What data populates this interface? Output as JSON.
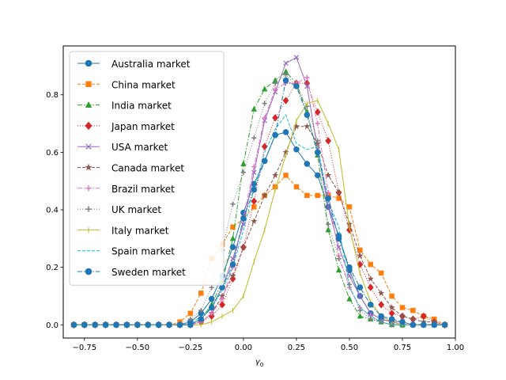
{
  "chart_data": {
    "type": "line",
    "xlabel": "γ0",
    "ylabel": "",
    "title": "",
    "xlim": [
      -0.85,
      1.0
    ],
    "ylim": [
      -0.046,
      0.97
    ],
    "x_ticks": [
      -0.75,
      -0.5,
      -0.25,
      0.0,
      0.25,
      0.5,
      0.75,
      1.0
    ],
    "x_tick_labels": [
      "−0.75",
      "−0.50",
      "−0.25",
      "0.00",
      "0.25",
      "0.50",
      "0.75",
      "1.00"
    ],
    "y_ticks": [
      0.0,
      0.2,
      0.4,
      0.6,
      0.8
    ],
    "y_tick_labels": [
      "0.0",
      "0.2",
      "0.4",
      "0.6",
      "0.8"
    ],
    "grid": false,
    "legend_position": "top-left",
    "x": [
      -0.8,
      -0.75,
      -0.7,
      -0.65,
      -0.6,
      -0.55,
      -0.5,
      -0.45,
      -0.4,
      -0.35,
      -0.3,
      -0.25,
      -0.2,
      -0.15,
      -0.1,
      -0.05,
      0.0,
      0.05,
      0.1,
      0.15,
      0.2,
      0.25,
      0.3,
      0.35,
      0.4,
      0.45,
      0.5,
      0.55,
      0.6,
      0.65,
      0.7,
      0.75,
      0.8,
      0.85,
      0.9,
      0.95
    ],
    "series": [
      {
        "name": "Australia market",
        "color": "#1f77b4",
        "dash": "",
        "marker": "circle",
        "values": [
          0,
          0,
          0,
          0,
          0,
          0,
          0,
          0,
          0,
          0,
          0,
          0.01,
          0.04,
          0.09,
          0.17,
          0.27,
          0.39,
          0.49,
          0.57,
          0.66,
          0.67,
          0.61,
          0.56,
          0.52,
          0.41,
          0.31,
          0.19,
          0.1,
          0.04,
          0.02,
          0.01,
          0,
          0,
          0,
          0,
          0
        ]
      },
      {
        "name": "China market",
        "color": "#ff7f0e",
        "dash": "4,2",
        "marker": "square",
        "values": [
          0,
          0,
          0,
          0,
          0,
          0,
          0,
          0,
          0,
          0,
          0.01,
          0.04,
          0.11,
          0.23,
          0.28,
          0.34,
          0.37,
          0.41,
          0.45,
          0.48,
          0.52,
          0.48,
          0.45,
          0.45,
          0.45,
          0.44,
          0.41,
          0.26,
          0.21,
          0.18,
          0.1,
          0.06,
          0.05,
          0.03,
          0.02,
          0
        ]
      },
      {
        "name": "India market",
        "color": "#2ca02c",
        "dash": "6,2,1.5,2",
        "marker": "triangle",
        "values": [
          0,
          0,
          0,
          0,
          0,
          0,
          0,
          0,
          0,
          0,
          0,
          0,
          0.02,
          0.07,
          0.15,
          0.3,
          0.56,
          0.75,
          0.82,
          0.85,
          0.88,
          0.84,
          0.74,
          0.59,
          0.33,
          0.19,
          0.09,
          0.03,
          0.02,
          0.01,
          0,
          0,
          0,
          0,
          0,
          0
        ]
      },
      {
        "name": "Japan market",
        "color": "#d62728",
        "dash": "1,2",
        "marker": "diamond",
        "values": [
          0,
          0,
          0,
          0,
          0,
          0,
          0,
          0,
          0,
          0,
          0,
          0,
          0.01,
          0.03,
          0.07,
          0.16,
          0.27,
          0.43,
          0.62,
          0.72,
          0.78,
          0.84,
          0.84,
          0.74,
          0.64,
          0.46,
          0.33,
          0.21,
          0.13,
          0.07,
          0.04,
          0.03,
          0.02,
          0.03,
          0.01,
          0
        ]
      },
      {
        "name": "USA market",
        "color": "#9467bd",
        "dash": "",
        "marker": "x",
        "values": [
          0,
          0,
          0,
          0,
          0,
          0,
          0,
          0,
          0,
          0,
          0,
          0,
          0.02,
          0.06,
          0.13,
          0.23,
          0.35,
          0.53,
          0.71,
          0.81,
          0.91,
          0.93,
          0.83,
          0.61,
          0.41,
          0.27,
          0.17,
          0.1,
          0.04,
          0.02,
          0.01,
          0.01,
          0,
          0,
          0,
          0
        ]
      },
      {
        "name": "Canada market",
        "color": "#8c564b",
        "dash": "4,2",
        "marker": "star",
        "values": [
          0,
          0,
          0,
          0,
          0,
          0,
          0,
          0,
          0,
          0,
          0,
          0,
          0.01,
          0.04,
          0.1,
          0.17,
          0.27,
          0.36,
          0.45,
          0.52,
          0.6,
          0.69,
          0.69,
          0.63,
          0.52,
          0.46,
          0.35,
          0.24,
          0.16,
          0.11,
          0.06,
          0.03,
          0.02,
          0.01,
          0.01,
          0
        ]
      },
      {
        "name": "Brazil market",
        "color": "#e377c2",
        "dash": "6,2,1.5,2",
        "marker": "plus",
        "values": [
          0,
          0,
          0,
          0,
          0,
          0,
          0,
          0,
          0,
          0,
          0,
          0,
          0.01,
          0.04,
          0.09,
          0.2,
          0.37,
          0.55,
          0.72,
          0.82,
          0.84,
          0.84,
          0.86,
          0.7,
          0.46,
          0.24,
          0.13,
          0.06,
          0.03,
          0.01,
          0,
          0,
          0,
          0,
          0,
          0
        ]
      },
      {
        "name": "UK market",
        "color": "#7f7f7f",
        "dash": "1,2",
        "marker": "plus",
        "values": [
          0,
          0,
          0,
          0,
          0,
          0,
          0,
          0,
          0,
          0,
          0,
          0.02,
          0.05,
          0.13,
          0.26,
          0.42,
          0.53,
          0.65,
          0.77,
          0.84,
          0.87,
          0.83,
          0.76,
          0.64,
          0.35,
          0.23,
          0.14,
          0.05,
          0.02,
          0.01,
          0,
          0,
          0,
          0,
          0,
          0
        ]
      },
      {
        "name": "Italy market",
        "color": "#bcbd22",
        "dash": "",
        "marker": "vline",
        "values": [
          0,
          0,
          0,
          0,
          0,
          0,
          0,
          0,
          0,
          0,
          0,
          0,
          0,
          0.01,
          0.03,
          0.05,
          0.1,
          0.22,
          0.33,
          0.47,
          0.59,
          0.71,
          0.77,
          0.78,
          0.7,
          0.61,
          0.34,
          0.18,
          0.08,
          0.03,
          0.01,
          0,
          0,
          0,
          0,
          0
        ]
      },
      {
        "name": "Spain market",
        "color": "#17becf",
        "dash": "4,2",
        "marker": "none",
        "values": [
          0,
          0,
          0,
          0,
          0,
          0,
          0,
          0,
          0,
          0,
          0,
          0,
          0.03,
          0.06,
          0.12,
          0.2,
          0.33,
          0.47,
          0.6,
          0.68,
          0.73,
          0.63,
          0.61,
          0.62,
          0.43,
          0.34,
          0.13,
          0.06,
          0.03,
          0.01,
          0,
          0,
          0,
          0,
          0,
          0
        ]
      },
      {
        "name": "Sweden market",
        "color": "#1f77b4",
        "dash": "6,2,1.5,2",
        "marker": "circle",
        "values": [
          0,
          0,
          0,
          0,
          0,
          0,
          0,
          0,
          0,
          0,
          0,
          0,
          0.02,
          0.06,
          0.13,
          0.21,
          0.37,
          0.47,
          0.57,
          0.66,
          0.85,
          0.83,
          0.73,
          0.6,
          0.44,
          0.3,
          0.2,
          0.13,
          0.07,
          0.03,
          0.02,
          0.01,
          0,
          0,
          0,
          0
        ]
      }
    ]
  }
}
